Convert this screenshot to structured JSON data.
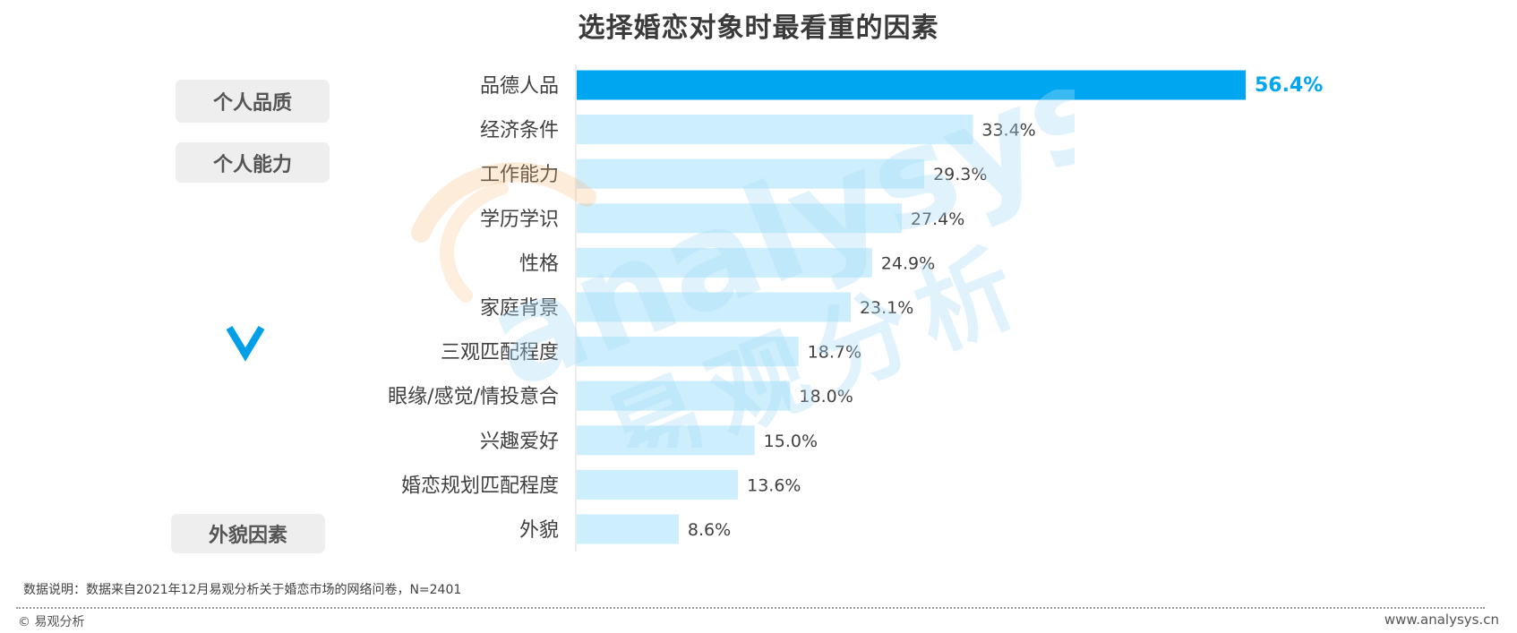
{
  "chart_data": {
    "type": "bar",
    "orientation": "horizontal",
    "title": "选择婚恋对象时最看重的因素",
    "categories": [
      "品德人品",
      "经济条件",
      "工作能力",
      "学历学识",
      "性格",
      "家庭背景",
      "三观匹配程度",
      "眼缘/感觉/情投意合",
      "兴趣爱好",
      "婚恋规划匹配程度",
      "外貌"
    ],
    "values": [
      56.4,
      33.4,
      29.3,
      27.4,
      24.9,
      23.1,
      18.7,
      18.0,
      15.0,
      13.6,
      8.6
    ],
    "value_labels": [
      "56.4%",
      "33.4%",
      "29.3%",
      "27.4%",
      "24.9%",
      "23.1%",
      "18.7%",
      "18.0%",
      "15.0%",
      "13.6%",
      "8.6%"
    ],
    "unit": "%",
    "highlight_index": 0,
    "grid": false,
    "colors": {
      "highlight": "#00a6f0",
      "bar": "#cdeefc",
      "highlight_label": "#00a6f0",
      "label": "#404040"
    }
  },
  "groups": {
    "personal_quality": "个人品质",
    "personal_ability": "个人能力",
    "appearance": "外貌因素"
  },
  "icons": {
    "ranking_arrow": "chevron-down-icon"
  },
  "watermark": {
    "latin": "analysys",
    "chinese": "易观分析"
  },
  "footer": {
    "note": "数据说明：数据来自2021年12月易观分析关于婚恋市场的网络问卷，N=2401",
    "copyright": "© 易观分析",
    "website": "www.analysys.cn"
  }
}
